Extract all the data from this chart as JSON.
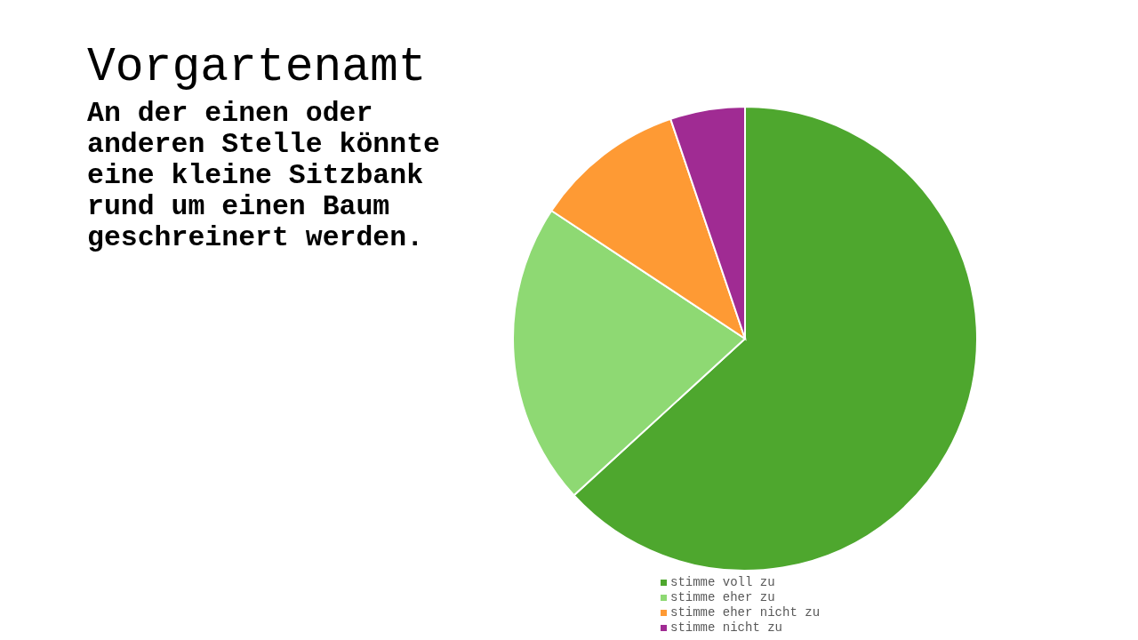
{
  "chart_data": {
    "type": "pie",
    "title": "Vorgartenamt",
    "subtitle": "An der einen oder anderen Stelle könnte eine kleine Sitzbank rund um einen Baum geschreinert werden.",
    "categories": [
      "stimme voll zu",
      "stimme eher zu",
      "stimme eher nicht zu",
      "stimme nicht zu"
    ],
    "values": [
      63.2,
      21.1,
      10.5,
      5.2
    ],
    "colors": [
      "#4ea72e",
      "#8ed973",
      "#fe9a34",
      "#a02b93"
    ],
    "legend": "bottom"
  }
}
